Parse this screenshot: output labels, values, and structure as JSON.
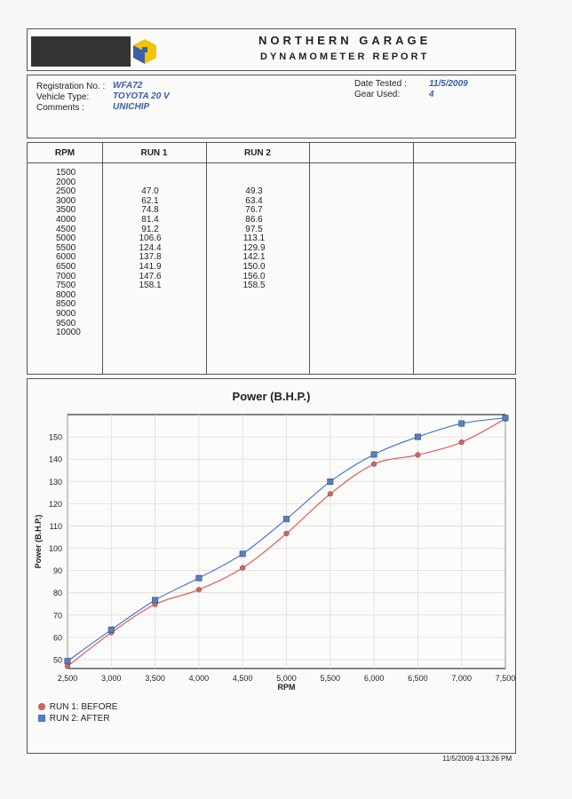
{
  "header": {
    "title": "NORTHERN GARAGE",
    "subtitle": "DYNAMOMETER REPORT"
  },
  "info": {
    "registration_label": "Registration No. :",
    "registration": "WFA72",
    "vehicle_label": "Vehicle Type:",
    "vehicle": "TOYOTA 20 V",
    "comments_label": "Comments :",
    "comments": "UNICHIP",
    "date_label": "Date Tested :",
    "date": "11/5/2009",
    "gear_label": "Gear Used:",
    "gear": "4"
  },
  "table": {
    "headers": [
      "RPM",
      "RUN 1",
      "RUN 2"
    ],
    "rpm": [
      "1500",
      "2000",
      "2500",
      "3000",
      "3500",
      "4000",
      "4500",
      "5000",
      "5500",
      "6000",
      "6500",
      "7000",
      "7500",
      "8000",
      "8500",
      "9000",
      "9500",
      "10000"
    ],
    "run1": [
      "",
      "",
      "47.0",
      "62.1",
      "74.8",
      "81.4",
      "91.2",
      "106.6",
      "124.4",
      "137.8",
      "141.9",
      "147.6",
      "158.1",
      "",
      "",
      "",
      "",
      ""
    ],
    "run2": [
      "",
      "",
      "49.3",
      "63.4",
      "76.7",
      "86.6",
      "97.5",
      "113.1",
      "129.9",
      "142.1",
      "150.0",
      "156.0",
      "158.5",
      "",
      "",
      "",
      "",
      ""
    ]
  },
  "chart_data": {
    "type": "line",
    "title": "Power (B.H.P.)",
    "xlabel": "RPM",
    "ylabel": "Power (B.H.P.)",
    "x": [
      2500,
      3000,
      3500,
      4000,
      4500,
      5000,
      5500,
      6000,
      6500,
      7000,
      7500
    ],
    "x_tick_labels": [
      "2,500",
      "3,000",
      "3,500",
      "4,000",
      "4,500",
      "5,000",
      "5,500",
      "6,000",
      "6,500",
      "7,000",
      "7,500"
    ],
    "y_ticks": [
      50,
      60,
      70,
      80,
      90,
      100,
      110,
      120,
      130,
      140,
      150
    ],
    "xlim": [
      2500,
      7500
    ],
    "ylim": [
      46,
      160
    ],
    "grid": true,
    "legend_position": "bottom-left",
    "series": [
      {
        "name": "RUN 1: BEFORE",
        "color": "#e05050",
        "marker": "circle",
        "values": [
          47.0,
          62.1,
          74.8,
          81.4,
          91.2,
          106.6,
          124.4,
          137.8,
          141.9,
          147.6,
          158.1
        ]
      },
      {
        "name": "RUN 2: AFTER",
        "color": "#3a6fd0",
        "marker": "square",
        "values": [
          49.3,
          63.4,
          76.7,
          86.6,
          97.5,
          113.1,
          129.9,
          142.1,
          150.0,
          156.0,
          158.5
        ]
      }
    ]
  },
  "footer": {
    "timestamp": "11/5/2009 4:13:26 PM"
  }
}
